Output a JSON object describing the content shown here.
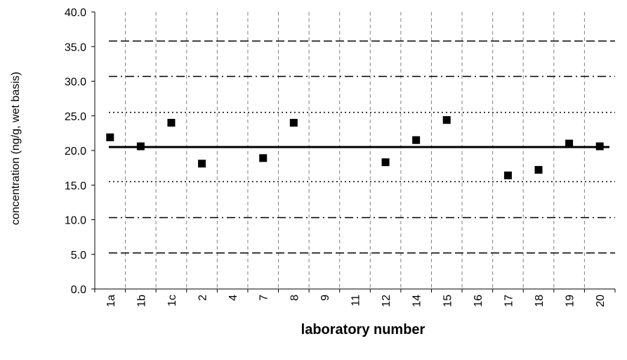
{
  "chart_data": {
    "type": "scatter",
    "title": "",
    "xlabel": "laboratory number",
    "ylabel": "concentration (ng/g, wet basis)",
    "ylim": [
      0,
      40
    ],
    "yticks": [
      "0.0",
      "5.0",
      "10.0",
      "15.0",
      "20.0",
      "25.0",
      "30.0",
      "35.0",
      "40.0"
    ],
    "categories": [
      "1a",
      "1b",
      "1c",
      "2",
      "4",
      "7",
      "8",
      "9",
      "11",
      "12",
      "14",
      "15",
      "16",
      "17",
      "18",
      "19",
      "20"
    ],
    "points": [
      {
        "category": "1a",
        "value": 21.9
      },
      {
        "category": "1b",
        "value": 20.6
      },
      {
        "category": "1c",
        "value": 24.0
      },
      {
        "category": "2",
        "value": 18.1
      },
      {
        "category": "7",
        "value": 18.9
      },
      {
        "category": "8",
        "value": 24.0
      },
      {
        "category": "12",
        "value": 18.3
      },
      {
        "category": "14",
        "value": 21.5
      },
      {
        "category": "15",
        "value": 24.4
      },
      {
        "category": "17",
        "value": 16.4
      },
      {
        "category": "18",
        "value": 17.2
      },
      {
        "category": "19",
        "value": 21.0
      },
      {
        "category": "20",
        "value": 20.6
      }
    ],
    "reference_lines": [
      {
        "value": 20.5,
        "style": "solid"
      },
      {
        "value": 25.5,
        "style": "dotted"
      },
      {
        "value": 15.5,
        "style": "dotted"
      },
      {
        "value": 30.7,
        "style": "dash-dot"
      },
      {
        "value": 10.3,
        "style": "dash-dot"
      },
      {
        "value": 35.8,
        "style": "dashed"
      },
      {
        "value": 5.2,
        "style": "dashed"
      }
    ],
    "grid": {
      "vertical": true,
      "vertical_style": "dashed",
      "horizontal": false
    },
    "legend": "none",
    "colors": {
      "marker": "#000000",
      "axis": "#000000",
      "grid": "#808080",
      "reference": "#000000"
    }
  }
}
